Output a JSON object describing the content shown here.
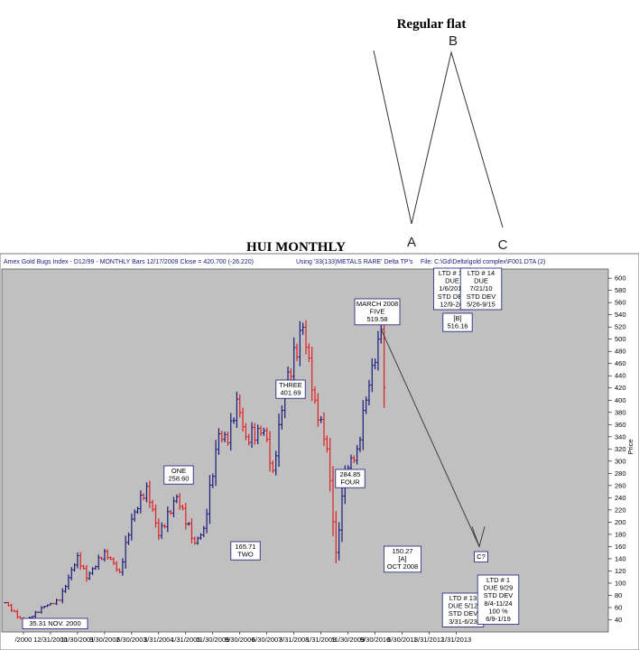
{
  "diagram": {
    "title": "Regular flat",
    "points": {
      "a": "A",
      "b": "B",
      "c": "C"
    }
  },
  "chart_title": "HUI MONTHLY",
  "header": {
    "left": "Amex Gold Bugs Index - D12/99  -  MONTHLY Bars  12/17/2009 Close = 420.700 (-26.220)",
    "middle": "Using '33(133)METALS RARE' Delta TP's",
    "right": "File: C:\\Gd\\Delta\\gold complex\\F001.DTA (2)"
  },
  "colors": {
    "up": "#1a1a7a",
    "down": "#e02020",
    "plot_bg": "#c0c0c0",
    "box_border": "#1a1a7a"
  },
  "chart_data": {
    "type": "bar",
    "ylabel": "Price",
    "ylim": [
      20,
      615
    ],
    "y_ticks": [
      40,
      60,
      80,
      100,
      120,
      140,
      160,
      180,
      200,
      220,
      240,
      260,
      280,
      300,
      320,
      340,
      360,
      380,
      400,
      420,
      440,
      460,
      480,
      500,
      520,
      540,
      560,
      580,
      600
    ],
    "x_ticks": [
      "/2000",
      "12/31/2000",
      "11/30/2001",
      "9/30/2002",
      "6/30/2003",
      "3/31/2004",
      "1/31/2005",
      "11/30/2005",
      "9/30/2006",
      "6/30/2007",
      "3/31/2008",
      "1/31/2009",
      "11/30/2009",
      "9/30/2010",
      "6/30/2011",
      "3/31/2012",
      "1/31/2013"
    ],
    "first_tick_month": 6,
    "months_per_tick": 9,
    "up_color": "#1a1a7a",
    "down_color": "#e02020",
    "anchors": [
      {
        "i": 0,
        "v": 68
      },
      {
        "i": 6,
        "v": 35.31
      },
      {
        "i": 13,
        "v": 62
      },
      {
        "i": 18,
        "v": 72
      },
      {
        "i": 24,
        "v": 145
      },
      {
        "i": 27,
        "v": 108
      },
      {
        "i": 33,
        "v": 152
      },
      {
        "i": 38,
        "v": 118
      },
      {
        "i": 42,
        "v": 205
      },
      {
        "i": 47,
        "v": 258.6
      },
      {
        "i": 51,
        "v": 178
      },
      {
        "i": 57,
        "v": 242
      },
      {
        "i": 63,
        "v": 165.71
      },
      {
        "i": 66,
        "v": 190
      },
      {
        "i": 71,
        "v": 345
      },
      {
        "i": 74,
        "v": 330
      },
      {
        "i": 77,
        "v": 401.69
      },
      {
        "i": 80,
        "v": 340
      },
      {
        "i": 86,
        "v": 350
      },
      {
        "i": 89,
        "v": 284.85
      },
      {
        "i": 93,
        "v": 420
      },
      {
        "i": 99,
        "v": 519.58
      },
      {
        "i": 103,
        "v": 400
      },
      {
        "i": 107,
        "v": 320
      },
      {
        "i": 110,
        "v": 150.27
      },
      {
        "i": 113,
        "v": 280
      },
      {
        "i": 117,
        "v": 320
      },
      {
        "i": 120,
        "v": 400
      },
      {
        "i": 124,
        "v": 500
      },
      {
        "i": 125,
        "v": 516.16
      },
      {
        "i": 126,
        "v": 420.7
      }
    ],
    "annotations": [
      {
        "label": "ONE",
        "value": "258.60"
      },
      {
        "label": "TWO",
        "value": "165.71"
      },
      {
        "label": "THREE",
        "value": "401.69"
      },
      {
        "label": "FOUR",
        "value": "284.85"
      },
      {
        "label": "MARCH 2008",
        "sub": "FIVE",
        "value": "519.58"
      },
      {
        "label": "[A]",
        "sub": "OCT 2008",
        "value": "150.27"
      },
      {
        "label": "[B]",
        "value": "516.16"
      },
      {
        "label": "NOV. 2000",
        "value": "35.31"
      },
      {
        "label": "C?"
      }
    ],
    "ltd_boxes": [
      {
        "lines": [
          "LTD # 12",
          "DUE",
          "1/6/2010",
          "STD DEV",
          "12/9-2/3"
        ]
      },
      {
        "lines": [
          "LTD # 14",
          "DUE",
          "7/21/10",
          "STD DEV",
          "5/26-9/15"
        ]
      },
      {
        "lines": [
          "LTD # 13",
          "DUE 5/12",
          "STD DEV",
          "3/31-6/23"
        ]
      },
      {
        "lines": [
          "LTD # 1",
          "DUE 9/29",
          "STD DEV",
          "8/4-11/24",
          "100 %",
          "6/9-1/19"
        ]
      }
    ]
  }
}
